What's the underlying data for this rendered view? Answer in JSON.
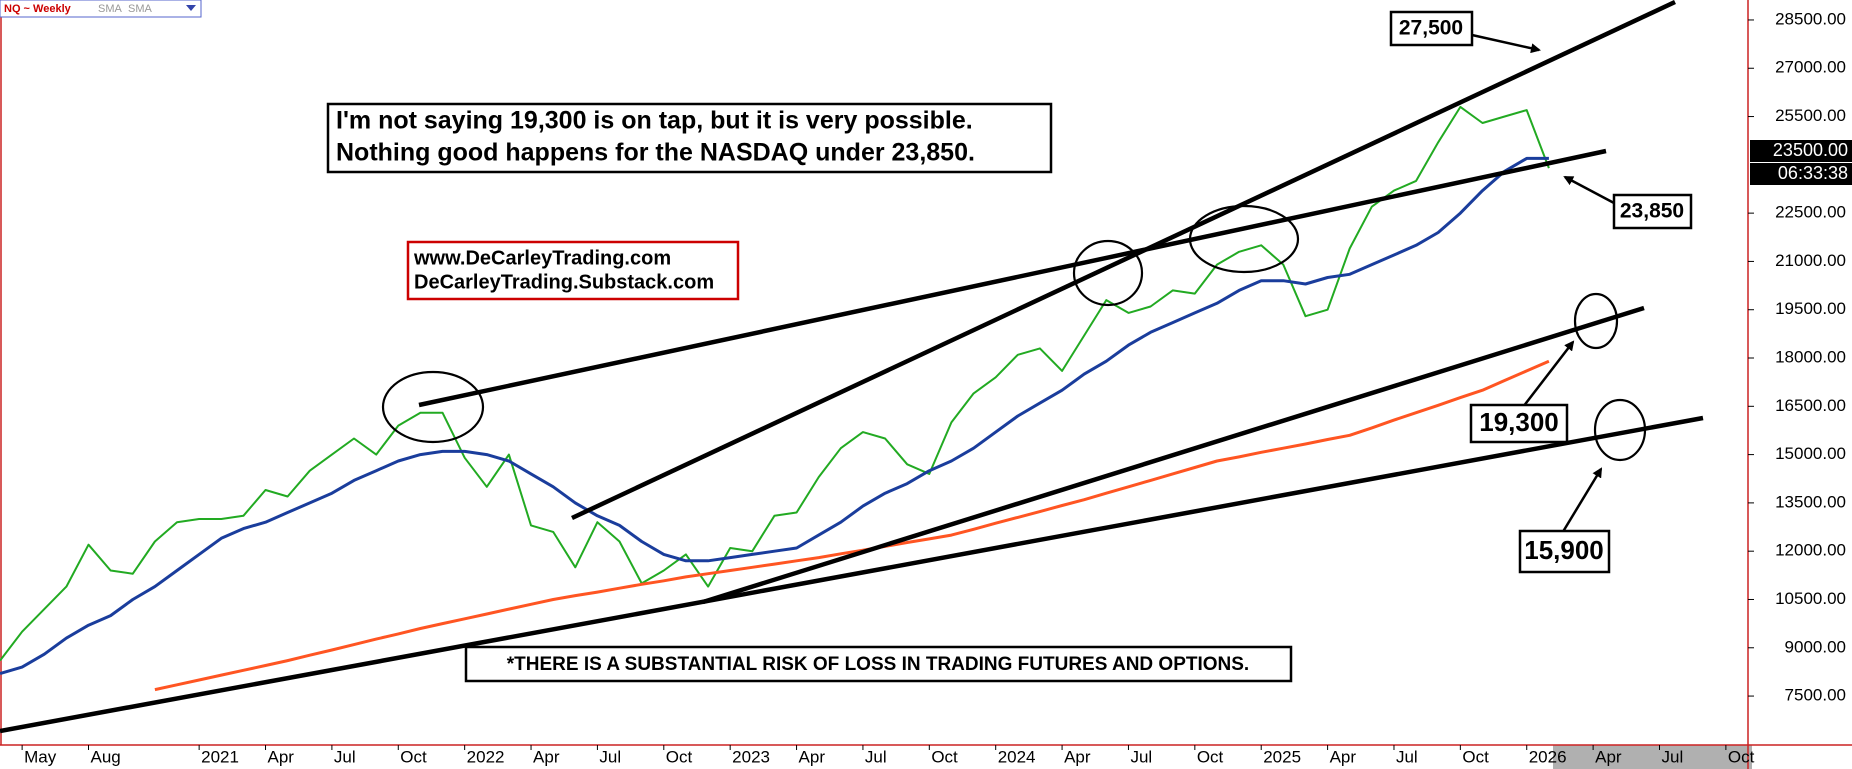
{
  "chart_data": {
    "type": "line",
    "legend_title": "NQ ~ Weekly",
    "x": [
      "2020-04",
      "2020-05",
      "2020-06",
      "2020-07",
      "2020-08",
      "2020-09",
      "2020-10",
      "2020-11",
      "2020-12",
      "2021-01",
      "2021-02",
      "2021-03",
      "2021-04",
      "2021-05",
      "2021-06",
      "2021-07",
      "2021-08",
      "2021-09",
      "2021-10",
      "2021-11",
      "2021-12",
      "2022-01",
      "2022-02",
      "2022-03",
      "2022-04",
      "2022-05",
      "2022-06",
      "2022-07",
      "2022-08",
      "2022-09",
      "2022-10",
      "2022-11",
      "2022-12",
      "2023-01",
      "2023-02",
      "2023-03",
      "2023-04",
      "2023-05",
      "2023-06",
      "2023-07",
      "2023-08",
      "2023-09",
      "2023-10",
      "2023-11",
      "2023-12",
      "2024-01",
      "2024-02",
      "2024-03",
      "2024-04",
      "2024-05",
      "2024-06",
      "2024-07",
      "2024-08",
      "2024-09",
      "2024-10",
      "2024-11",
      "2024-12",
      "2025-01",
      "2025-02",
      "2025-03",
      "2025-04",
      "2025-05",
      "2025-06",
      "2025-07",
      "2025-08",
      "2025-09",
      "2025-10",
      "2025-11",
      "2025-12",
      "2026-01",
      "2026-02"
    ],
    "series": [
      {
        "name": "NQ ~ Weekly",
        "color": "#22aa22",
        "width": 2,
        "values": [
          8600,
          9500,
          10200,
          10900,
          12200,
          11400,
          11300,
          12300,
          12900,
          13000,
          13000,
          13100,
          13900,
          13700,
          14500,
          15000,
          15500,
          15000,
          15900,
          16300,
          16300,
          14900,
          14000,
          15000,
          12800,
          12600,
          11500,
          12900,
          12300,
          11000,
          11400,
          11900,
          10900,
          12100,
          12000,
          13100,
          13200,
          14300,
          15200,
          15700,
          15500,
          14700,
          14400,
          16000,
          16900,
          17400,
          18100,
          18300,
          17600,
          18700,
          19800,
          19400,
          19600,
          20100,
          20000,
          20900,
          21300,
          21500,
          20900,
          19300,
          19500,
          21400,
          22700,
          23200,
          23500,
          24700,
          25800,
          25300,
          25500,
          25700,
          23900
        ]
      },
      {
        "name": "SMA",
        "color": "#1a3d9c",
        "width": 3,
        "values": [
          8200,
          8400,
          8800,
          9300,
          9700,
          10000,
          10500,
          10900,
          11400,
          11900,
          12400,
          12700,
          12900,
          13200,
          13500,
          13800,
          14200,
          14500,
          14800,
          15000,
          15100,
          15100,
          15000,
          14800,
          14400,
          14000,
          13500,
          13100,
          12800,
          12300,
          11900,
          11700,
          11700,
          11800,
          11900,
          12000,
          12100,
          12500,
          12900,
          13400,
          13800,
          14100,
          14500,
          14800,
          15200,
          15700,
          16200,
          16600,
          17000,
          17500,
          17900,
          18400,
          18800,
          19100,
          19400,
          19700,
          20100,
          20400,
          20400,
          20300,
          20500,
          20600,
          20900,
          21200,
          21500,
          21900,
          22500,
          23200,
          23800,
          24200,
          24200
        ]
      },
      {
        "name": "SMA",
        "color": "#ff5522",
        "width": 3,
        "values": [
          null,
          null,
          null,
          null,
          null,
          null,
          null,
          7700,
          7850,
          8000,
          8150,
          8300,
          8450,
          8600,
          8770,
          8930,
          9100,
          9270,
          9430,
          9600,
          9750,
          9900,
          10050,
          10200,
          10350,
          10500,
          10620,
          10730,
          10850,
          10970,
          11080,
          11200,
          11300,
          11400,
          11500,
          11600,
          11700,
          11800,
          11920,
          12030,
          12150,
          12270,
          12380,
          12500,
          12680,
          12870,
          13050,
          13230,
          13420,
          13600,
          13800,
          14000,
          14200,
          14400,
          14600,
          14800,
          14930,
          15070,
          15200,
          15330,
          15470,
          15600,
          15830,
          16070,
          16300,
          16530,
          16770,
          17000,
          17300,
          17600,
          17900
        ]
      }
    ],
    "xlim": [
      "2020-04",
      "2026-11"
    ],
    "xticks": [
      {
        "value": "2020-05",
        "label": "May"
      },
      {
        "value": "2020-08",
        "label": "Aug"
      },
      {
        "value": "2021-01",
        "label": "2021"
      },
      {
        "value": "2021-04",
        "label": "Apr"
      },
      {
        "value": "2021-07",
        "label": "Jul"
      },
      {
        "value": "2021-10",
        "label": "Oct"
      },
      {
        "value": "2022-01",
        "label": "2022"
      },
      {
        "value": "2022-04",
        "label": "Apr"
      },
      {
        "value": "2022-07",
        "label": "Jul"
      },
      {
        "value": "2022-10",
        "label": "Oct"
      },
      {
        "value": "2023-01",
        "label": "2023"
      },
      {
        "value": "2023-04",
        "label": "Apr"
      },
      {
        "value": "2023-07",
        "label": "Jul"
      },
      {
        "value": "2023-10",
        "label": "Oct"
      },
      {
        "value": "2024-01",
        "label": "2024"
      },
      {
        "value": "2024-04",
        "label": "Apr"
      },
      {
        "value": "2024-07",
        "label": "Jul"
      },
      {
        "value": "2024-10",
        "label": "Oct"
      },
      {
        "value": "2025-01",
        "label": "2025"
      },
      {
        "value": "2025-04",
        "label": "Apr"
      },
      {
        "value": "2025-07",
        "label": "Jul"
      },
      {
        "value": "2025-10",
        "label": "Oct"
      },
      {
        "value": "2026-01",
        "label": "2026"
      },
      {
        "value": "2026-04",
        "label": "Apr"
      },
      {
        "value": "2026-07",
        "label": "Jul"
      },
      {
        "value": "2026-10",
        "label": "Oct"
      }
    ],
    "ylim": [
      5980,
      29120
    ],
    "yticks": [
      {
        "value": 7500,
        "label": "7500.00"
      },
      {
        "value": 9000,
        "label": "9000.00"
      },
      {
        "value": 10500,
        "label": "10500.00"
      },
      {
        "value": 12000,
        "label": "12000.00"
      },
      {
        "value": 13500,
        "label": "13500.00"
      },
      {
        "value": 15000,
        "label": "15000.00"
      },
      {
        "value": 16500,
        "label": "16500.00"
      },
      {
        "value": 18000,
        "label": "18000.00"
      },
      {
        "value": 19500,
        "label": "19500.00"
      },
      {
        "value": 21000,
        "label": "21000.00"
      },
      {
        "value": 22500,
        "label": "22500.00"
      },
      {
        "value": 25500,
        "label": "25500.00"
      },
      {
        "value": 27000,
        "label": "27000.00"
      },
      {
        "value": 28500,
        "label": "28500.00"
      }
    ],
    "grid": false,
    "price_tag": "23500.00",
    "timer": "06:33:38",
    "headline": [
      "I'm not saying 19,300 is on tap, but it is very possible.",
      "Nothing good happens for the NASDAQ under 23,850."
    ],
    "websites": [
      "www.DeCarleyTrading.com",
      "DeCarleyTrading.Substack.com"
    ],
    "disclaimer": "*THERE IS A SUBSTANTIAL RISK OF LOSS IN TRADING FUTURES AND OPTIONS.",
    "callouts": [
      "27,500",
      "23,850",
      "19,300",
      "15,900"
    ]
  }
}
